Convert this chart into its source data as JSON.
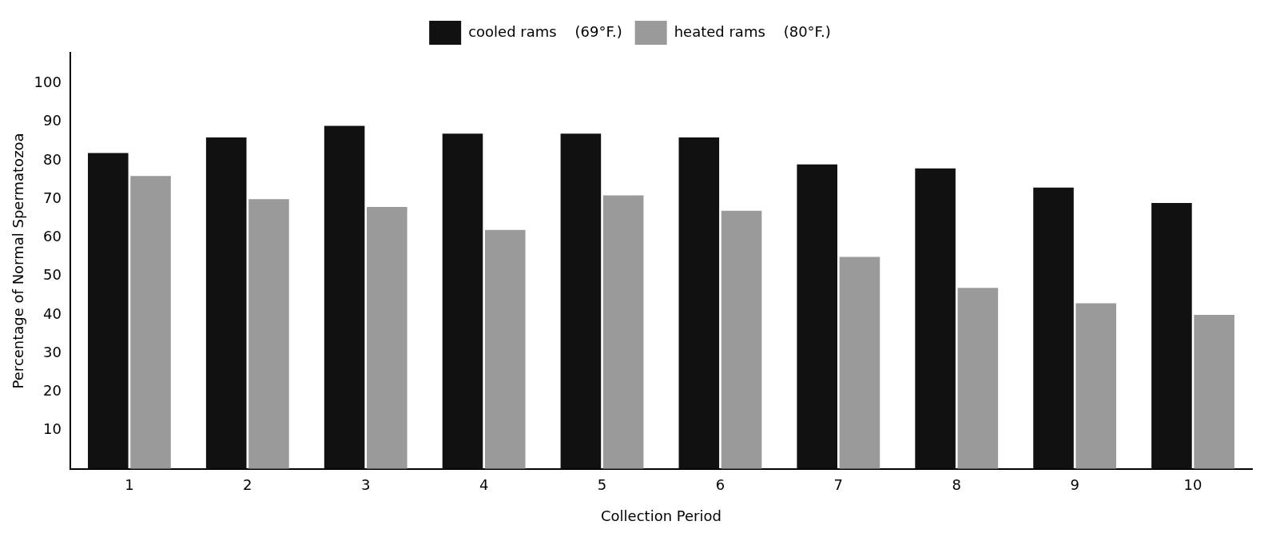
{
  "chart_data": {
    "type": "bar",
    "xlabel": "Collection Period",
    "ylabel": "Percentage of Normal Spermatozoa",
    "categories": [
      "1",
      "2",
      "3",
      "4",
      "5",
      "6",
      "7",
      "8",
      "9",
      "10"
    ],
    "series": [
      {
        "name": "cooled rams    (69°F.)",
        "color": "#111111",
        "values": [
          82,
          86,
          89,
          87,
          87,
          86,
          79,
          78,
          73,
          69
        ]
      },
      {
        "name": "heated rams    (80°F.)",
        "color": "#9a9a9a",
        "values": [
          76,
          70,
          68,
          62,
          71,
          67,
          55,
          47,
          43,
          40
        ]
      }
    ],
    "ylim": [
      0,
      108
    ],
    "yticks": [
      10,
      20,
      30,
      40,
      50,
      60,
      70,
      80,
      90,
      100
    ],
    "grid": false,
    "legend": "top"
  }
}
